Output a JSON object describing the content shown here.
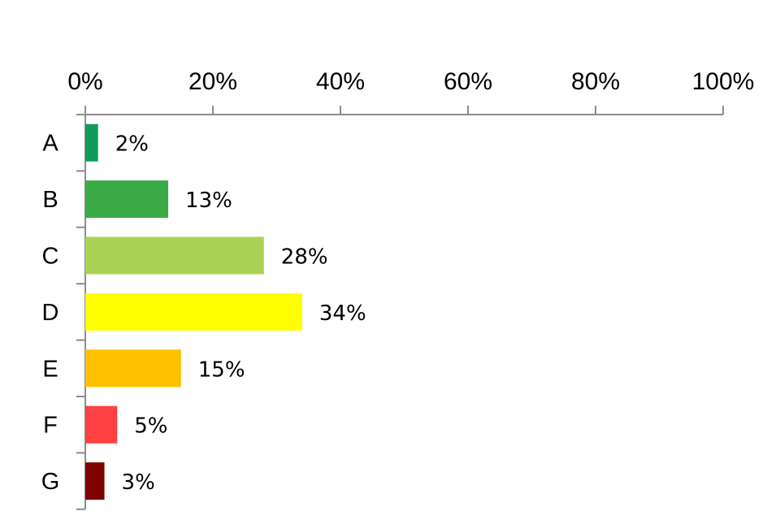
{
  "chart_data": {
    "type": "bar",
    "orientation": "horizontal",
    "categories": [
      "A",
      "B",
      "C",
      "D",
      "E",
      "F",
      "G"
    ],
    "values": [
      2,
      13,
      28,
      34,
      15,
      5,
      3
    ],
    "value_labels": [
      "2%",
      "13%",
      "28%",
      "34%",
      "15%",
      "5%",
      "3%"
    ],
    "colors": [
      "#119b5a",
      "#3aaa47",
      "#aad355",
      "#ffff00",
      "#ffc000",
      "#ff4040",
      "#7f0000"
    ],
    "x_ticks": [
      0,
      20,
      40,
      60,
      80,
      100
    ],
    "x_tick_labels": [
      "0%",
      "20%",
      "40%",
      "60%",
      "80%",
      "100%"
    ],
    "xlim": [
      0,
      100
    ],
    "x_axis_position": "top",
    "grid": false,
    "legend": "none",
    "title": "",
    "xlabel": "",
    "ylabel": ""
  }
}
